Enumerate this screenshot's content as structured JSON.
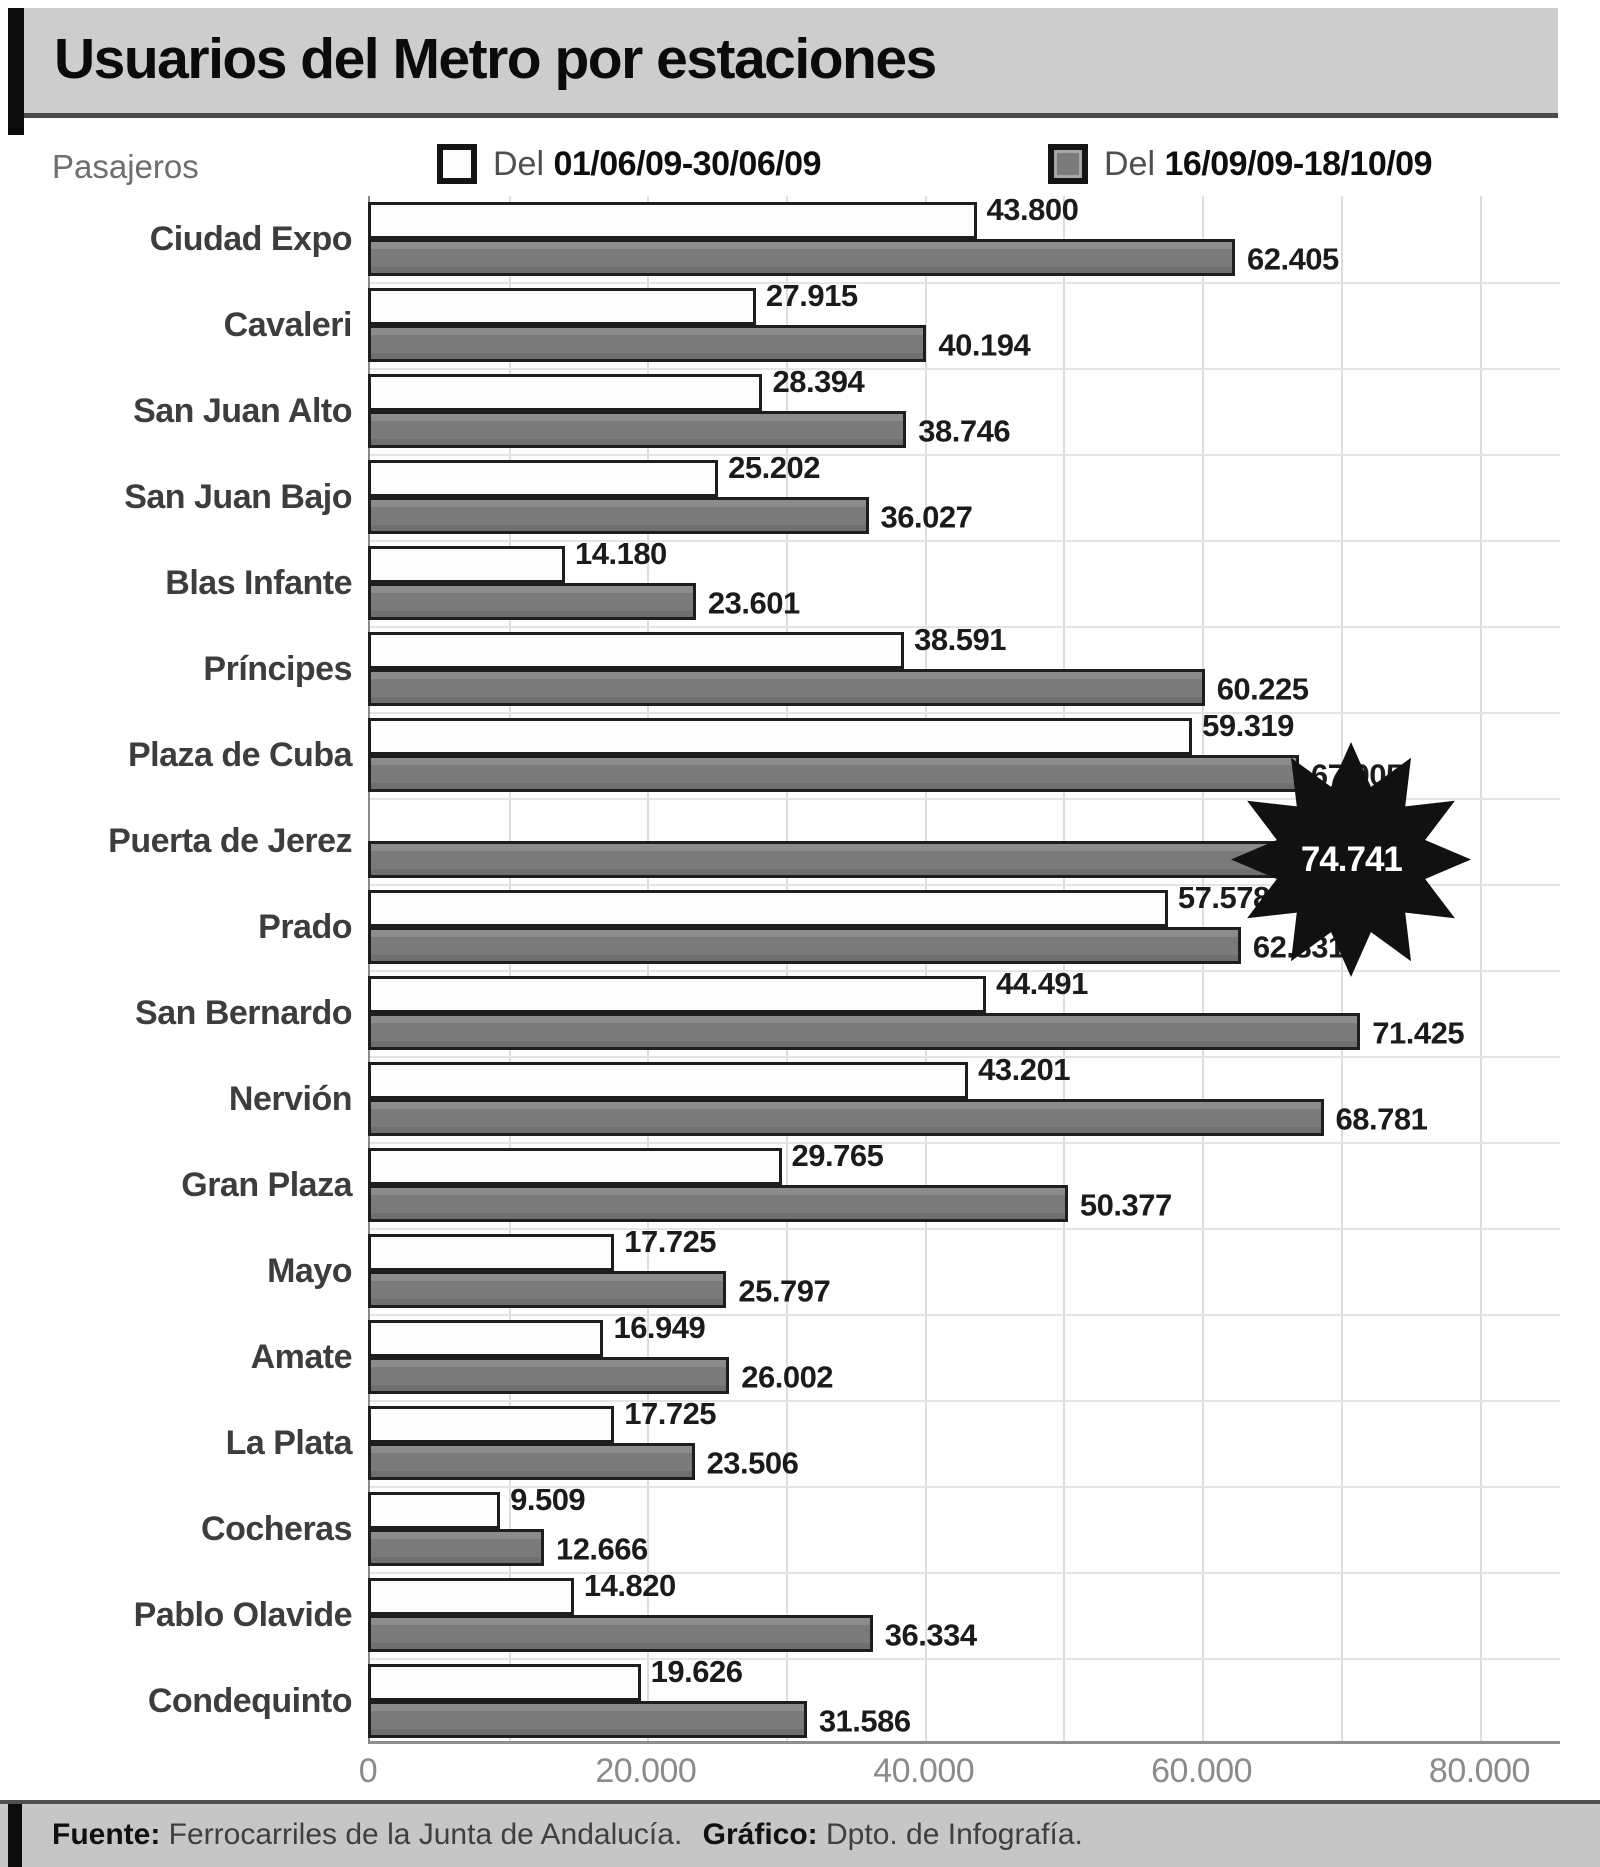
{
  "title": "Usuarios del Metro por estaciones",
  "legend": {
    "axis_unit_label": "Pasajeros",
    "series1_prefix": "Del",
    "series1_label": "01/06/09-30/06/09",
    "series2_prefix": "Del",
    "series2_label": "16/09/09-18/10/09"
  },
  "footer": {
    "fuente_label": "Fuente:",
    "fuente_text": "Ferrocarriles de la Junta de Andalucía.",
    "grafico_label": "Gráfico:",
    "grafico_text": "Dpto. de Infografía."
  },
  "colors": {
    "bar_white": "#fdfdfd",
    "bar_gray": "#7a7a7a",
    "bar_border": "#1e1e1e",
    "header_bg": "#cdcdcd",
    "footer_bg": "#c6c6c6",
    "grid": "#dddddd",
    "axis_text": "#8b8b8b",
    "starburst": "#111111"
  },
  "chart_data": {
    "type": "bar",
    "orientation": "horizontal",
    "title": "Usuarios del Metro por estaciones",
    "ylabel": "Pasajeros",
    "xlim": [
      0,
      85800
    ],
    "grid": true,
    "legend_position": "top",
    "x_tick_units": [
      0,
      20000,
      40000,
      60000,
      80000
    ],
    "x_tick_labels": [
      "0",
      "20.000",
      "40.000",
      "60.000",
      "80.000"
    ],
    "series_names": [
      "Del 01/06/09-30/06/09",
      "Del 16/09/09-18/10/09"
    ],
    "x_max_units": 85800,
    "stations": [
      {
        "name": "Ciudad Expo",
        "jun": 43800,
        "jun_label": "43.800",
        "sep": 62405,
        "sep_label": "62.405",
        "highlight": false
      },
      {
        "name": "Cavaleri",
        "jun": 27915,
        "jun_label": "27.915",
        "sep": 40194,
        "sep_label": "40.194",
        "highlight": false
      },
      {
        "name": "San Juan Alto",
        "jun": 28394,
        "jun_label": "28.394",
        "sep": 38746,
        "sep_label": "38.746",
        "highlight": false
      },
      {
        "name": "San Juan Bajo",
        "jun": 25202,
        "jun_label": "25.202",
        "sep": 36027,
        "sep_label": "36.027",
        "highlight": false
      },
      {
        "name": "Blas Infante",
        "jun": 14180,
        "jun_label": "14.180",
        "sep": 23601,
        "sep_label": "23.601",
        "highlight": false
      },
      {
        "name": "Príncipes",
        "jun": 38591,
        "jun_label": "38.591",
        "sep": 60225,
        "sep_label": "60.225",
        "highlight": false
      },
      {
        "name": "Plaza de Cuba",
        "jun": 59319,
        "jun_label": "59.319",
        "sep": 67005,
        "sep_label": "67.005",
        "highlight": false
      },
      {
        "name": "Puerta de Jerez",
        "jun": null,
        "jun_label": "",
        "sep": 74741,
        "sep_label": "74.741",
        "highlight": true
      },
      {
        "name": "Prado",
        "jun": 57578,
        "jun_label": "57.578",
        "sep": 62831,
        "sep_label": "62.831",
        "highlight": false
      },
      {
        "name": "San Bernardo",
        "jun": 44491,
        "jun_label": "44.491",
        "sep": 71425,
        "sep_label": "71.425",
        "highlight": false
      },
      {
        "name": "Nervión",
        "jun": 43201,
        "jun_label": "43.201",
        "sep": 68781,
        "sep_label": "68.781",
        "highlight": false
      },
      {
        "name": "Gran Plaza",
        "jun": 29765,
        "jun_label": "29.765",
        "sep": 50377,
        "sep_label": "50.377",
        "highlight": false
      },
      {
        "name": "Mayo",
        "jun": 17725,
        "jun_label": "17.725",
        "sep": 25797,
        "sep_label": "25.797",
        "highlight": false
      },
      {
        "name": "Amate",
        "jun": 16949,
        "jun_label": "16.949",
        "sep": 26002,
        "sep_label": "26.002",
        "highlight": false
      },
      {
        "name": "La Plata",
        "jun": 17725,
        "jun_label": "17.725",
        "sep": 23506,
        "sep_label": "23.506",
        "highlight": false
      },
      {
        "name": "Cocheras",
        "jun": 9509,
        "jun_label": "9.509",
        "sep": 12666,
        "sep_label": "12.666",
        "highlight": false
      },
      {
        "name": "Pablo Olavide",
        "jun": 14820,
        "jun_label": "14.820",
        "sep": 36334,
        "sep_label": "36.334",
        "highlight": false
      },
      {
        "name": "Condequinto",
        "jun": 19626,
        "jun_label": "19.626",
        "sep": 31586,
        "sep_label": "31.586",
        "highlight": false
      }
    ]
  }
}
